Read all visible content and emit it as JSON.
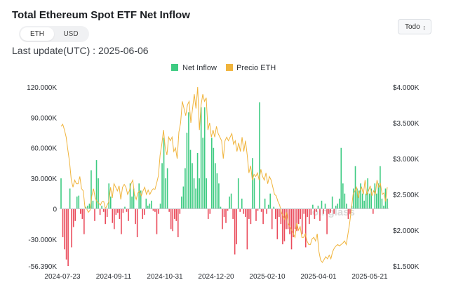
{
  "header": {
    "title": "Total Ethereum Spot ETF Net Inflow",
    "update_text": "Last update(UTC) : 2025-06-06",
    "unit_options": [
      "ETH",
      "USD"
    ],
    "selected_unit": "ETH",
    "range_value": "Todo"
  },
  "watermark": "oinglass",
  "colors": {
    "inflow_positive": "#3ecb82",
    "inflow_negative": "#ea4b5b",
    "price_line": "#f0b43c"
  },
  "chart_data": {
    "type": "bar",
    "title": "Total Ethereum Spot ETF Net Inflow",
    "legend": {
      "position": "top-center",
      "entries": [
        "Net Inflow",
        "Precio ETH"
      ]
    },
    "x_ticks": [
      "2024-07-23",
      "2024-09-11",
      "2024-10-31",
      "2024-12-20",
      "2025-02-10",
      "2025-04-01",
      "2025-05-21"
    ],
    "y_left": {
      "ticks": [
        "120.000K",
        "90.000K",
        "60.000K",
        "30.000K",
        "0",
        "-30.000K",
        "-56.390K"
      ],
      "range": [
        -56390,
        120000
      ]
    },
    "y_right": {
      "ticks": [
        "$4.000K",
        "$3.500K",
        "$3.000K",
        "$2.500K",
        "$2.000K",
        "$1.500K"
      ],
      "range": [
        1500,
        4000
      ]
    },
    "grid": false,
    "series": [
      {
        "name": "Net Inflow",
        "type": "bar",
        "values": [
          30000,
          -28000,
          -40000,
          -50000,
          -56390,
          20000,
          -38000,
          -18000,
          -12000,
          12000,
          13000,
          -5000,
          -10000,
          -25000,
          2000,
          3000,
          5000,
          38000,
          8000,
          -12000,
          48000,
          30000,
          -6000,
          3000,
          -3000,
          -15000,
          -8000,
          25000,
          12000,
          -14000,
          -20000,
          -6000,
          -4000,
          -10000,
          -25000,
          -4000,
          2000,
          -3000,
          -12000,
          25000,
          12000,
          20000,
          -15000,
          -28000,
          25000,
          18000,
          -10000,
          -6000,
          10000,
          3000,
          5000,
          8000,
          -2000,
          -3000,
          -25000,
          -5000,
          5000,
          45000,
          70000,
          30000,
          40000,
          -3000,
          -20000,
          -22000,
          -10000,
          -12000,
          -28000,
          -5000,
          12000,
          22000,
          40000,
          75000,
          95000,
          58000,
          45000,
          30000,
          20000,
          55000,
          30000,
          100000,
          70000,
          100000,
          30000,
          -10000,
          -5000,
          70000,
          60000,
          45000,
          35000,
          25000,
          2000,
          -20000,
          -8000,
          -14000,
          -2000,
          12000,
          15000,
          -10000,
          -45000,
          -35000,
          30000,
          -3000,
          10000,
          -5000,
          -8000,
          -40000,
          -10000,
          -15000,
          50000,
          30000,
          -12000,
          -2000,
          105000,
          -3000,
          -15000,
          10000,
          -5000,
          4000,
          15000,
          -20000,
          2000,
          -10000,
          -30000,
          -8000,
          -15000,
          -35000,
          -32000,
          -20000,
          -20000,
          -25000,
          -40000,
          -28000,
          -20000,
          -22000,
          -15000,
          -10000,
          -25000,
          -5000,
          -38000,
          -8000,
          -15000,
          -6000,
          4000,
          -10000,
          -3000,
          3000,
          -12000,
          8000,
          -5000,
          5000,
          -25000,
          -5000,
          -4000,
          12000,
          -5000,
          3000,
          5000,
          10000,
          60000,
          25000,
          15000,
          5000,
          -10000,
          -5000,
          3000,
          20000,
          42000,
          20000,
          18000,
          25000,
          15000,
          8000,
          15000,
          30000,
          15000,
          20000,
          -5000,
          25000,
          15000,
          25000,
          42000,
          10000,
          3000,
          20000,
          10000
        ]
      },
      {
        "name": "Precio ETH",
        "type": "line",
        "values": [
          3450,
          3480,
          3400,
          3300,
          3120,
          2950,
          2700,
          2600,
          2700,
          2650,
          2650,
          2750,
          2580,
          2550,
          2320,
          2300,
          2250,
          2280,
          2480,
          2580,
          2450,
          2400,
          2380,
          2350,
          2400,
          2400,
          2300,
          2350,
          2400,
          2600,
          2450,
          2650,
          2600,
          2550,
          2620,
          2430,
          2600,
          2640,
          2600,
          2500,
          2550,
          2650,
          2700,
          2500,
          2430,
          2520,
          2550,
          2480,
          2550,
          2600,
          2500,
          2560,
          2500,
          2550,
          2580,
          2570,
          2660,
          2760,
          3050,
          3200,
          3400,
          3150,
          3050,
          3300,
          3250,
          3300,
          3100,
          3150,
          3000,
          3370,
          3500,
          3800,
          3700,
          3600,
          3750,
          3800,
          3500,
          3700,
          3900,
          3700,
          4000,
          3400,
          3750,
          3900,
          3800,
          3850,
          3400,
          3500,
          3300,
          3400,
          3300,
          3450,
          3350,
          3300,
          3250,
          3000,
          3250,
          3300,
          3250,
          3300,
          3350,
          3200,
          3250,
          3100,
          3220,
          3100,
          3300,
          3100,
          3250,
          3050,
          2800,
          2900,
          2700,
          2780,
          2750,
          2800,
          2700,
          2850,
          2750,
          2700,
          2800,
          2650,
          2750,
          2700,
          2600,
          2500,
          2480,
          2400,
          2350,
          2250,
          2200,
          2150,
          2250,
          2100,
          2050,
          2000,
          1950,
          1900,
          2100,
          2000,
          2050,
          1900,
          1900,
          1950,
          1850,
          1800,
          1800,
          1880,
          1900,
          1850,
          1950,
          1700,
          1580,
          1550,
          1590,
          1630,
          1600,
          1650,
          1600,
          1700,
          1750,
          1780,
          1800,
          1780,
          1800,
          1820,
          1850,
          1800,
          1950,
          2100,
          2300,
          2500,
          2550,
          2600,
          2450,
          2550,
          2600,
          2500,
          2700,
          2500,
          2550,
          2620,
          2480,
          2550,
          2500,
          2700,
          2600,
          2650,
          2500,
          2520,
          2400,
          2600
        ]
      }
    ]
  }
}
